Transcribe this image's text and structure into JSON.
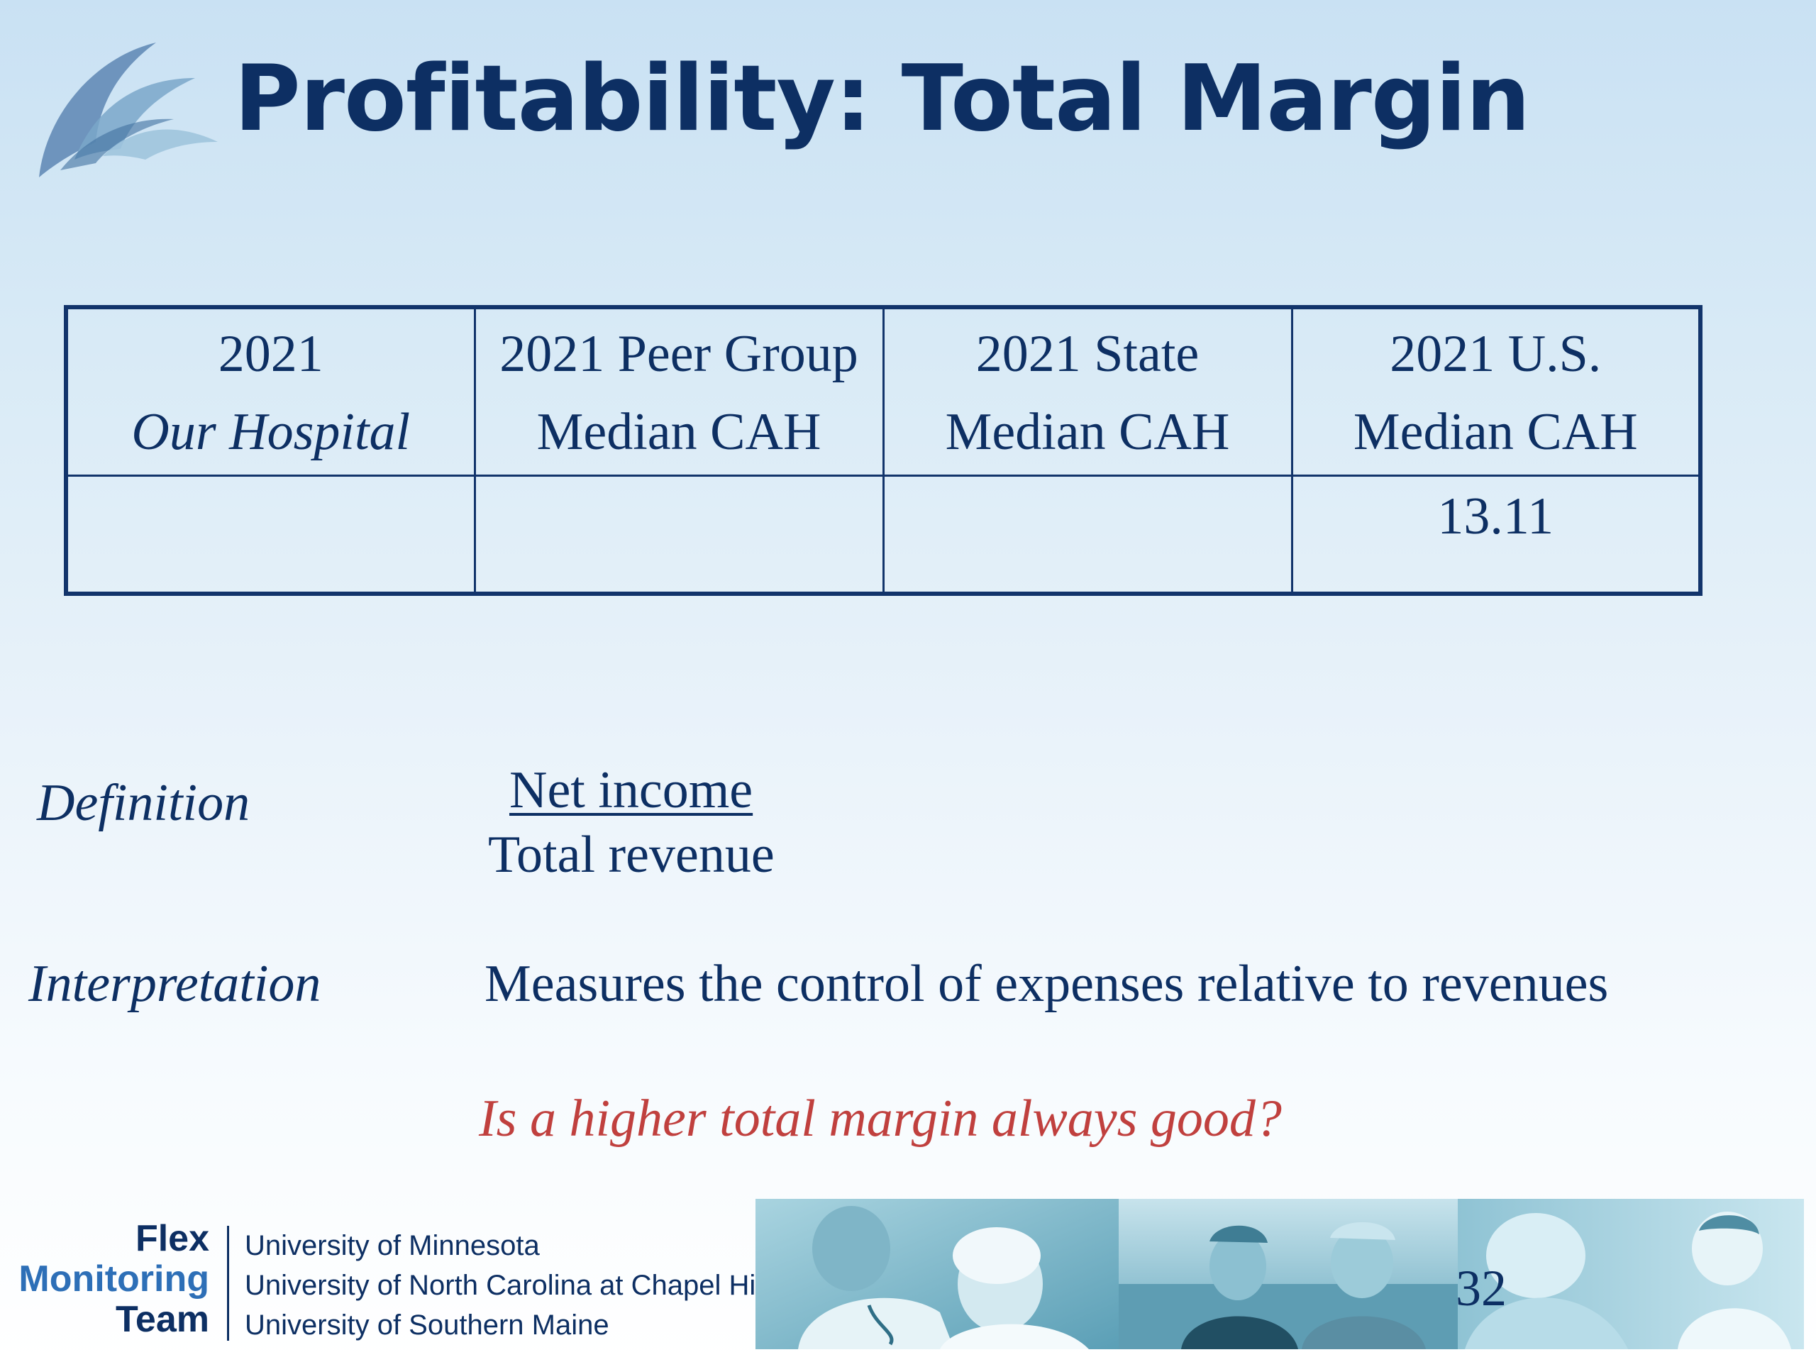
{
  "slide": {
    "title": "Profitability:  Total Margin",
    "page_number": "32"
  },
  "table": {
    "columns": [
      {
        "line1": "2021",
        "line2": "Our Hospital",
        "line2_italic": true,
        "value": ""
      },
      {
        "line1": "2021 Peer Group",
        "line2": "Median CAH",
        "line2_italic": false,
        "value": ""
      },
      {
        "line1": "2021 State",
        "line2": "Median CAH",
        "line2_italic": false,
        "value": ""
      },
      {
        "line1": "2021 U.S.",
        "line2": "Median CAH",
        "line2_italic": false,
        "value": "13.11"
      }
    ]
  },
  "definition": {
    "label": "Definition",
    "numerator": "Net income",
    "denominator": "Total revenue"
  },
  "interpretation": {
    "label": "Interpretation",
    "text": "Measures the control of expenses relative to revenues"
  },
  "question": "Is a higher total margin always good?",
  "footer": {
    "team_name": [
      "Flex",
      "Monitoring",
      "Team"
    ],
    "team_colors": [
      "#0d2f63",
      "#2d6fb7",
      "#0d2f63"
    ],
    "universities": [
      "University of Minnesota",
      "University of North Carolina at Chapel Hill",
      "University of Southern Maine"
    ]
  },
  "colors": {
    "title": "#0d2f63",
    "question": "#c0403e",
    "table_border": "#12346b"
  }
}
